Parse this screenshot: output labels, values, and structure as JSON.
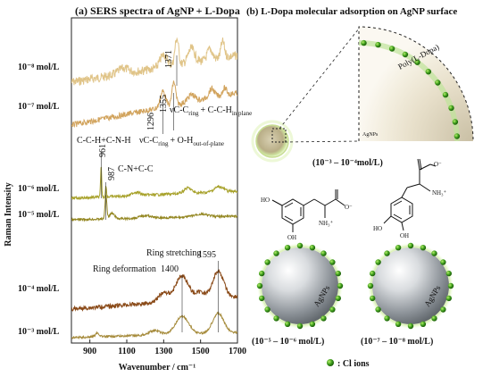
{
  "panel_a": {
    "title": "(a) SERS spectra of AgNP + L-Dopa",
    "ylabel": "Raman Intensity",
    "xlabel": "Wavenumber / cm⁻¹",
    "x_ticks": [
      "900",
      "1100",
      "1300",
      "1500",
      "1700"
    ],
    "x_tick_values": [
      900,
      1100,
      1300,
      1500,
      1700
    ],
    "x_range": [
      800,
      1700
    ],
    "concentrations": [
      "10⁻⁸ mol/L",
      "10⁻⁷ mol/L",
      "10⁻⁶ mol/L",
      "10⁻⁵ mol/L",
      "10⁻⁴ mol/L",
      "10⁻³ mol/L"
    ],
    "peak_labels": [
      "1371",
      "1355",
      "1296",
      "961",
      "987",
      "1400",
      "1595"
    ],
    "peak_values": [
      1371,
      1355,
      1296,
      961,
      987,
      1400,
      1595
    ],
    "annotations": {
      "vcc_ring_plane": "νC-C",
      "vcc_ring_plane_sub": "ring",
      "vcc_ring_plane_mid": "+ C-C-H",
      "vcc_ring_plane_sub2": "in plane",
      "cch_cnh": "C-C-H+C-N-H",
      "vcc_ring_oh": "νC-C",
      "vcc_ring_oh_sub": "ring",
      "vcc_ring_oh_mid": "+ O-H",
      "vcc_ring_oh_sub2": "out-of-plane",
      "cn_cc": "C-N+C-C",
      "ring_stretching": "Ring stretching",
      "ring_deformation": "Ring deformation"
    },
    "colors": {
      "1e-8": "#e0c488",
      "1e-7": "#d2a45e",
      "1e-6": "#a8a22c",
      "1e-5": "#938620",
      "1e-4": "#8a4a18",
      "1e-3": "#a58a3a"
    }
  },
  "panel_b": {
    "title": "(b) L-Dopa molecular adsorption on AgNP surface",
    "poly_label": "Poly(L-Dopa)",
    "agnps_small": "AgNPs",
    "agnps_text": "AgNPs",
    "conc_high": "(10⁻³ – 10⁻⁴mol/L)",
    "conc_mid": "(10⁻⁵ – 10⁻⁶ mol/L)",
    "conc_low": "(10⁻⁷ – 10⁻⁸ mol/L)",
    "cl_legend": ": Cl ions",
    "mol_left": {
      "ho_top": "HO",
      "ho_bottom": "OH",
      "o_minus": "O⁻",
      "nh3": "NH₃⁺"
    },
    "mol_right": {
      "ho_top": "HO",
      "ho_bottom": "OH",
      "o_minus": "O⁻",
      "nh3": "NH₃⁺"
    }
  }
}
